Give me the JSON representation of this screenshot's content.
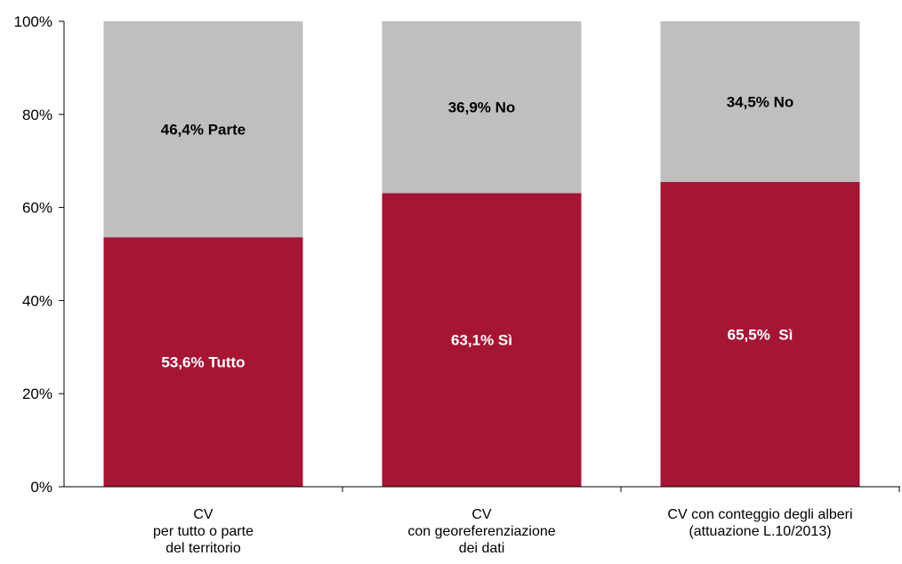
{
  "chart_data": {
    "type": "bar",
    "stacked": true,
    "categories": [
      [
        "CV",
        "per tutto o parte",
        "del territorio"
      ],
      [
        "CV",
        "con georeferenziazione",
        "dei dati"
      ],
      [
        "CV con conteggio degli alberi",
        "(attuazione L.10/2013)"
      ]
    ],
    "series": [
      {
        "color": "#a51534",
        "label_color": "#ffffff",
        "values": [
          53.6,
          63.1,
          65.5
        ],
        "labels": [
          "53,6% Tutto",
          "63,1% Sì",
          "65,5%  Sì"
        ]
      },
      {
        "color": "#bfbfbf",
        "label_color": "#000000",
        "values": [
          46.4,
          36.9,
          34.5
        ],
        "labels": [
          "46,4% Parte",
          "36,9% No",
          "34,5% No"
        ]
      }
    ],
    "yticks": [
      "0%",
      "20%",
      "40%",
      "60%",
      "80%",
      "100%"
    ],
    "ylim": [
      0,
      100
    ],
    "title": "",
    "xlabel": "",
    "ylabel": "",
    "grid": false,
    "legend": "none"
  }
}
